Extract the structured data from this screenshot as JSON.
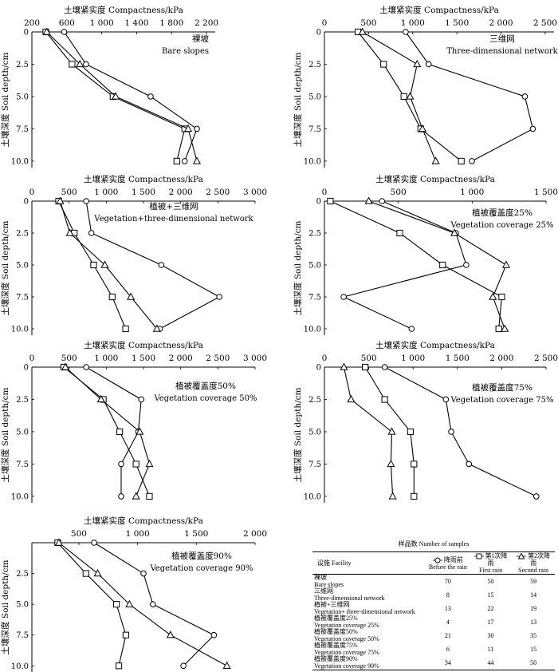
{
  "figure": {
    "top_axis_title": "土壤紧实度 Compactness/kPa",
    "y_axis_title": "土壤深度 Soil depth/cm",
    "depth_ticks": [
      "0",
      "2.5",
      "5.0",
      "7.5",
      "10.0"
    ]
  },
  "legend": {
    "title": "样品数 Number of samples",
    "facility_header": "设施 Facility",
    "series": [
      {
        "cn": "降雨前",
        "en": "Before the rain",
        "marker": "circle"
      },
      {
        "cn": "第1次降雨",
        "en": "First rain",
        "marker": "square"
      },
      {
        "cn": "第2次降雨",
        "en": "Second rain",
        "marker": "triangle"
      }
    ],
    "rows": [
      {
        "cn": "裸坡",
        "en": "Bare slopes",
        "values": [
          "70",
          "50",
          "59"
        ]
      },
      {
        "cn": "三维网",
        "en": "Three-dimensional network",
        "values": [
          "8",
          "15",
          "14"
        ]
      },
      {
        "cn": "植被+三维网",
        "en": "Vegetation+ three-dimensional network",
        "values": [
          "13",
          "22",
          "19"
        ]
      },
      {
        "cn": "植被覆盖度25%",
        "en": "Vegetation coverage 25%",
        "values": [
          "4",
          "17",
          "13"
        ]
      },
      {
        "cn": "植被覆盖度50%",
        "en": "Vegetation coverage 50%",
        "values": [
          "21",
          "30",
          "35"
        ]
      },
      {
        "cn": "植被覆盖度75%",
        "en": "Vegetation coverage 75%",
        "values": [
          "6",
          "11",
          "15"
        ]
      },
      {
        "cn": "植被覆盖度90%",
        "en": "Vegetation coverage 90%",
        "values": [
          "34",
          "44",
          "50"
        ]
      }
    ]
  },
  "chart_data": [
    {
      "type": "line",
      "title_cn": "裸坡",
      "title_en": "Bare slopes",
      "xlabel": "土壤紧实度 Compactness/kPa",
      "ylabel": "土壤深度 Soil depth/cm",
      "xlim": [
        200,
        2300
      ],
      "ylim": [
        0,
        10.5
      ],
      "xticks": [
        200,
        600,
        1000,
        1400,
        1800,
        2200
      ],
      "xtick_labels": [
        "200",
        "600",
        "1 000",
        "1 400",
        "1 800",
        "2 200"
      ],
      "depth": [
        0,
        2.5,
        5.0,
        7.5,
        10.0
      ],
      "series": [
        {
          "name": "Before the rain",
          "values": [
            570,
            820,
            1560,
            2090,
            1950
          ]
        },
        {
          "name": "First rain",
          "values": [
            360,
            660,
            1130,
            1950,
            1860
          ]
        },
        {
          "name": "Second rain",
          "values": [
            370,
            750,
            1160,
            1990,
            2090
          ]
        }
      ]
    },
    {
      "type": "line",
      "title_cn": "三维网",
      "title_en": "Three-dimensional network",
      "xlabel": "土壤紧实度 Compactness/kPa",
      "ylabel": "土壤深度 Soil depth/cm",
      "xlim": [
        0,
        2600
      ],
      "ylim": [
        0,
        10.5
      ],
      "xticks": [
        0,
        500,
        1000,
        1500,
        2000,
        2500
      ],
      "xtick_labels": [
        "0",
        "500",
        "1 000",
        "1 500",
        "2 000",
        "2 500"
      ],
      "depth": [
        0,
        2.5,
        5.0,
        7.5,
        10.0
      ],
      "series": [
        {
          "name": "Before the rain",
          "values": [
            920,
            1180,
            2270,
            2360,
            1670
          ]
        },
        {
          "name": "First rain",
          "values": [
            380,
            670,
            900,
            1090,
            1550
          ]
        },
        {
          "name": "Second rain",
          "values": [
            430,
            1050,
            970,
            1110,
            1260
          ]
        }
      ]
    },
    {
      "type": "line",
      "title_cn": "植被+三维网",
      "title_en": "Vegetation+three-dimensional network",
      "xlabel": "土壤紧实度 Compactness/kPa",
      "ylabel": "土壤深度 Soil depth/cm",
      "xlim": [
        0,
        3000
      ],
      "ylim": [
        0,
        10.5
      ],
      "xticks": [
        0,
        500,
        1000,
        1500,
        2000,
        2500,
        3000
      ],
      "xtick_labels": [
        "0",
        "500",
        "1 000",
        "1 500",
        "2 000",
        "2 500",
        "3 000"
      ],
      "depth": [
        0,
        2.5,
        5.0,
        7.5,
        10.0
      ],
      "series": [
        {
          "name": "Before the rain",
          "values": [
            730,
            800,
            1740,
            2520,
            1720
          ]
        },
        {
          "name": "First rain",
          "values": [
            360,
            570,
            830,
            1080,
            1260
          ]
        },
        {
          "name": "Second rain",
          "values": [
            380,
            510,
            980,
            1330,
            1680
          ]
        }
      ]
    },
    {
      "type": "line",
      "title_cn": "植被覆盖度25%",
      "title_en": "Vegetation coverage 25%",
      "xlabel": "土壤紧实度 Compactness/kPa",
      "ylabel": "土壤深度 Soil depth/cm",
      "xlim": [
        0,
        1500
      ],
      "ylim": [
        0,
        10.5
      ],
      "xticks": [
        0,
        500,
        1000,
        1500
      ],
      "xtick_labels": [
        "0",
        "500",
        "1 000",
        "1 500"
      ],
      "depth": [
        0,
        2.5,
        5.0,
        7.5,
        10.0
      ],
      "series": [
        {
          "name": "Before the rain",
          "values": [
            390,
            890,
            960,
            130,
            590
          ]
        },
        {
          "name": "First rain",
          "values": [
            40,
            510,
            800,
            1200,
            1180
          ]
        },
        {
          "name": "Second rain",
          "values": [
            300,
            880,
            1230,
            1140,
            1220
          ]
        }
      ]
    },
    {
      "type": "line",
      "title_cn": "植被覆盖度50%",
      "title_en": "Vegetation coverage 50%",
      "xlabel": "土壤紧实度 Compactness/kPa",
      "ylabel": "土壤深度 Soil depth/cm",
      "xlim": [
        0,
        3000
      ],
      "ylim": [
        0,
        10.5
      ],
      "xticks": [
        0,
        500,
        1000,
        1500,
        2000,
        2500,
        3000
      ],
      "xtick_labels": [
        "0",
        "500",
        "1 000",
        "1 500",
        "2 000",
        "2 500",
        "3 000"
      ],
      "depth": [
        0,
        2.5,
        5.0,
        7.5,
        10.0
      ],
      "series": [
        {
          "name": "Before the rain",
          "values": [
            730,
            1470,
            1430,
            1200,
            1200
          ]
        },
        {
          "name": "First rain",
          "values": [
            430,
            960,
            1180,
            1400,
            1580
          ]
        },
        {
          "name": "Second rain",
          "values": [
            450,
            930,
            1450,
            1580,
            1400
          ]
        }
      ]
    },
    {
      "type": "line",
      "title_cn": "植被覆盖度75%",
      "title_en": "Vegetation coverage 75%",
      "xlabel": "土壤紧实度 Compactness/kPa",
      "ylabel": "土壤深度 Soil depth/cm",
      "xlim": [
        0,
        2500
      ],
      "ylim": [
        0,
        10.5
      ],
      "xticks": [
        0,
        500,
        1000,
        1500,
        2000,
        2500
      ],
      "xtick_labels": [
        "0",
        "500",
        "1 000",
        "1 500",
        "2 000",
        "2 500"
      ],
      "depth": [
        0,
        2.5,
        5.0,
        7.5,
        10.0
      ],
      "series": [
        {
          "name": "Before the rain",
          "values": [
            680,
            1370,
            1430,
            1630,
            2390
          ]
        },
        {
          "name": "First rain",
          "values": [
            460,
            680,
            970,
            1010,
            1010
          ]
        },
        {
          "name": "Second rain",
          "values": [
            220,
            300,
            760,
            750,
            770
          ]
        }
      ]
    },
    {
      "type": "line",
      "title_cn": "植被覆盖度90%",
      "title_en": "Vegetation coverage 90%",
      "xlabel": "土壤紧实度 Compactness/kPa",
      "ylabel": "土壤深度 Soil depth/cm",
      "xlim": [
        100,
        2000
      ],
      "ylim": [
        0,
        10.5
      ],
      "xticks": [
        500,
        1000,
        1500,
        2000
      ],
      "xtick_labels": [
        "500",
        "1 000",
        "1 500",
        "2 000"
      ],
      "depth": [
        0,
        2.5,
        5.0,
        7.5,
        10.0
      ],
      "series": [
        {
          "name": "Before the rain",
          "values": [
            630,
            1050,
            1130,
            1650,
            1390
          ]
        },
        {
          "name": "First rain",
          "values": [
            320,
            560,
            820,
            900,
            840
          ]
        },
        {
          "name": "Second rain",
          "values": [
            330,
            660,
            930,
            1280,
            1760
          ]
        }
      ]
    }
  ]
}
